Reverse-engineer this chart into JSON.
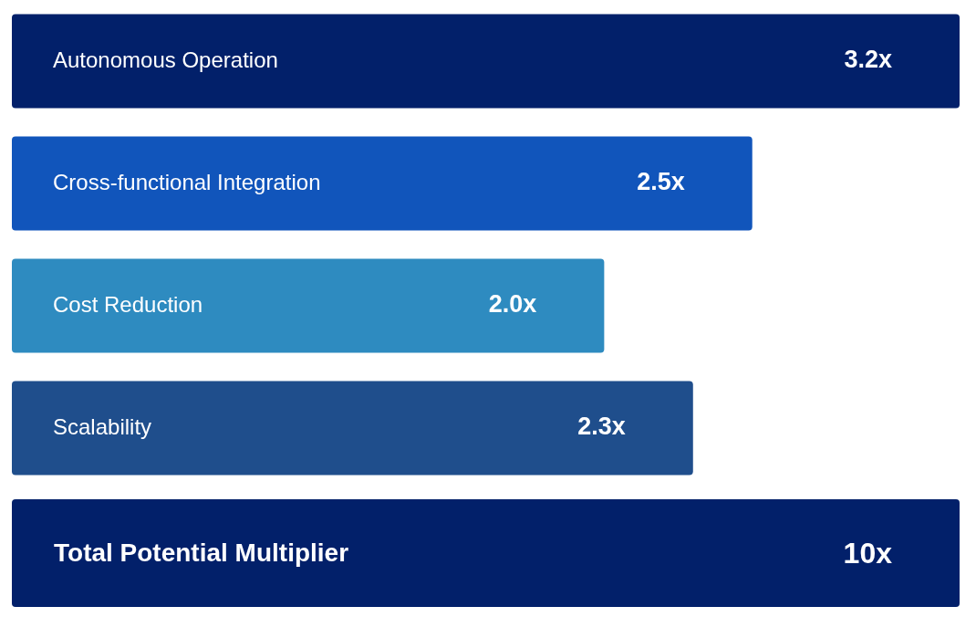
{
  "chart_data": [
    {
      "type": "bar",
      "orientation": "horizontal",
      "categories": [
        "Autonomous Operation",
        "Cross-functional Integration",
        "Cost Reduction",
        "Scalability"
      ],
      "values": [
        3.2,
        2.5,
        2.0,
        2.3
      ],
      "colors": [
        "#02206a",
        "#1155bb",
        "#2e8bc0",
        "#1f4e8c"
      ],
      "value_labels": [
        "3.2x",
        "2.5x",
        "2.0x",
        "2.3x"
      ],
      "xlim": [
        0,
        3.2
      ]
    },
    {
      "type": "other",
      "annotations": [
        "Total Potential Multiplier",
        "10x"
      ],
      "color": "#02206a"
    }
  ]
}
